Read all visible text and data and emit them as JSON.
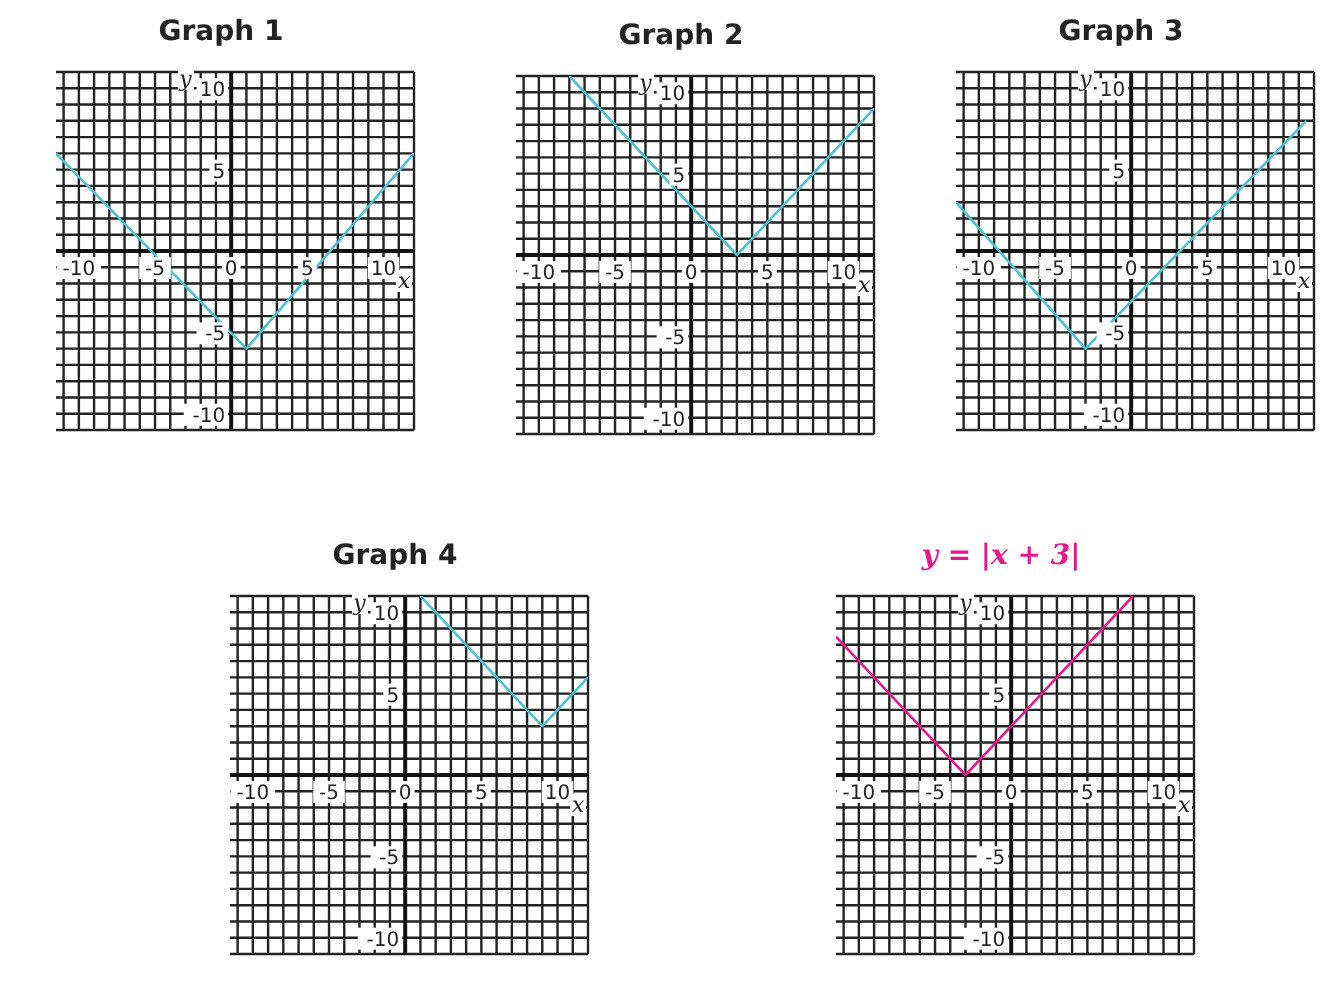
{
  "chart_data": [
    {
      "type": "line",
      "title": "Graph 1",
      "xlabel": "x",
      "ylabel": "y",
      "grid": true,
      "xlim": [
        -11.5,
        12
      ],
      "ylim": [
        -11,
        11
      ],
      "xticks": [
        {
          "value": -11,
          "label": null
        },
        -10,
        {
          "value": -9,
          "label": null
        },
        {
          "value": -8,
          "label": null
        },
        {
          "value": -7,
          "label": null
        },
        {
          "value": -6,
          "label": null
        },
        -5,
        {
          "value": -4,
          "label": null
        },
        {
          "value": -3,
          "label": null
        },
        {
          "value": -2,
          "label": null
        },
        {
          "value": -1,
          "label": null
        },
        0,
        {
          "value": 1,
          "label": null
        },
        {
          "value": 2,
          "label": null
        },
        {
          "value": 3,
          "label": null
        },
        {
          "value": 4,
          "label": null
        },
        5,
        {
          "value": 6,
          "label": null
        },
        {
          "value": 7,
          "label": null
        },
        {
          "value": 8,
          "label": null
        },
        {
          "value": 9,
          "label": null
        },
        10,
        {
          "value": 11,
          "label": null
        },
        {
          "value": 12,
          "label": null
        }
      ],
      "yticks": [
        {
          "value": -11,
          "label": null
        },
        -10,
        {
          "value": -9,
          "label": null
        },
        {
          "value": -8,
          "label": null
        },
        {
          "value": -7,
          "label": null
        },
        {
          "value": -6,
          "label": null
        },
        -5,
        {
          "value": -4,
          "label": null
        },
        {
          "value": -3,
          "label": null
        },
        {
          "value": -2,
          "label": null
        },
        {
          "value": -1,
          "label": null
        },
        {
          "value": 0,
          "label": null
        },
        {
          "value": 1,
          "label": null
        },
        {
          "value": 2,
          "label": null
        },
        {
          "value": 3,
          "label": null
        },
        {
          "value": 4,
          "label": null
        },
        5,
        {
          "value": 6,
          "label": null
        },
        {
          "value": 7,
          "label": null
        },
        {
          "value": 8,
          "label": null
        },
        {
          "value": 9,
          "label": null
        },
        10,
        {
          "value": 11,
          "label": null
        }
      ],
      "series": [
        {
          "color": "#4ec3cf",
          "x": [
            -11.5,
            1,
            12
          ],
          "values": [
            6,
            -6,
            6
          ]
        }
      ]
    },
    {
      "type": "line",
      "title": "Graph 2",
      "xlabel": "x",
      "ylabel": "y",
      "grid": true,
      "xlim": [
        -11.5,
        12
      ],
      "ylim": [
        -11,
        11
      ],
      "xticks": [
        {
          "value": -11,
          "label": null
        },
        -10,
        {
          "value": -9,
          "label": null
        },
        {
          "value": -8,
          "label": null
        },
        {
          "value": -7,
          "label": null
        },
        {
          "value": -6,
          "label": null
        },
        -5,
        {
          "value": -4,
          "label": null
        },
        {
          "value": -3,
          "label": null
        },
        {
          "value": -2,
          "label": null
        },
        {
          "value": -1,
          "label": null
        },
        0,
        {
          "value": 1,
          "label": null
        },
        {
          "value": 2,
          "label": null
        },
        {
          "value": 3,
          "label": null
        },
        {
          "value": 4,
          "label": null
        },
        5,
        {
          "value": 6,
          "label": null
        },
        {
          "value": 7,
          "label": null
        },
        {
          "value": 8,
          "label": null
        },
        {
          "value": 9,
          "label": null
        },
        10,
        {
          "value": 11,
          "label": null
        },
        {
          "value": 12,
          "label": null
        }
      ],
      "yticks": [
        {
          "value": -11,
          "label": null
        },
        -10,
        {
          "value": -9,
          "label": null
        },
        {
          "value": -8,
          "label": null
        },
        {
          "value": -7,
          "label": null
        },
        {
          "value": -6,
          "label": null
        },
        -5,
        {
          "value": -4,
          "label": null
        },
        {
          "value": -3,
          "label": null
        },
        {
          "value": -2,
          "label": null
        },
        {
          "value": -1,
          "label": null
        },
        {
          "value": 0,
          "label": null
        },
        {
          "value": 1,
          "label": null
        },
        {
          "value": 2,
          "label": null
        },
        {
          "value": 3,
          "label": null
        },
        {
          "value": 4,
          "label": null
        },
        5,
        {
          "value": 6,
          "label": null
        },
        {
          "value": 7,
          "label": null
        },
        {
          "value": 8,
          "label": null
        },
        {
          "value": 9,
          "label": null
        },
        10,
        {
          "value": 11,
          "label": null
        }
      ],
      "series": [
        {
          "color": "#4ec3cf",
          "x": [
            -8,
            3,
            12
          ],
          "values": [
            11,
            0,
            9
          ]
        }
      ]
    },
    {
      "type": "line",
      "title": "Graph 3",
      "xlabel": "x",
      "ylabel": "y",
      "grid": true,
      "xlim": [
        -11.5,
        12
      ],
      "ylim": [
        -11,
        11
      ],
      "xticks": [
        {
          "value": -11,
          "label": null
        },
        -10,
        {
          "value": -9,
          "label": null
        },
        {
          "value": -8,
          "label": null
        },
        {
          "value": -7,
          "label": null
        },
        {
          "value": -6,
          "label": null
        },
        -5,
        {
          "value": -4,
          "label": null
        },
        {
          "value": -3,
          "label": null
        },
        {
          "value": -2,
          "label": null
        },
        {
          "value": -1,
          "label": null
        },
        0,
        {
          "value": 1,
          "label": null
        },
        {
          "value": 2,
          "label": null
        },
        {
          "value": 3,
          "label": null
        },
        {
          "value": 4,
          "label": null
        },
        5,
        {
          "value": 6,
          "label": null
        },
        {
          "value": 7,
          "label": null
        },
        {
          "value": 8,
          "label": null
        },
        {
          "value": 9,
          "label": null
        },
        10,
        {
          "value": 11,
          "label": null
        },
        {
          "value": 12,
          "label": null
        }
      ],
      "yticks": [
        {
          "value": -11,
          "label": null
        },
        -10,
        {
          "value": -9,
          "label": null
        },
        {
          "value": -8,
          "label": null
        },
        {
          "value": -7,
          "label": null
        },
        {
          "value": -6,
          "label": null
        },
        -5,
        {
          "value": -4,
          "label": null
        },
        {
          "value": -3,
          "label": null
        },
        {
          "value": -2,
          "label": null
        },
        {
          "value": -1,
          "label": null
        },
        {
          "value": 0,
          "label": null
        },
        {
          "value": 1,
          "label": null
        },
        {
          "value": 2,
          "label": null
        },
        {
          "value": 3,
          "label": null
        },
        {
          "value": 4,
          "label": null
        },
        5,
        {
          "value": 6,
          "label": null
        },
        {
          "value": 7,
          "label": null
        },
        {
          "value": 8,
          "label": null
        },
        {
          "value": 9,
          "label": null
        },
        10,
        {
          "value": 11,
          "label": null
        }
      ],
      "series": [
        {
          "color": "#4ec3cf",
          "x": [
            -11.5,
            -3,
            11.5
          ],
          "values": [
            3,
            -6,
            8
          ]
        }
      ]
    },
    {
      "type": "line",
      "title": "Graph 4",
      "xlabel": "x",
      "ylabel": "y",
      "grid": true,
      "xlim": [
        -11.5,
        12
      ],
      "ylim": [
        -11,
        11
      ],
      "xticks": [
        {
          "value": -11,
          "label": null
        },
        -10,
        {
          "value": -9,
          "label": null
        },
        {
          "value": -8,
          "label": null
        },
        {
          "value": -7,
          "label": null
        },
        {
          "value": -6,
          "label": null
        },
        -5,
        {
          "value": -4,
          "label": null
        },
        {
          "value": -3,
          "label": null
        },
        {
          "value": -2,
          "label": null
        },
        {
          "value": -1,
          "label": null
        },
        0,
        {
          "value": 1,
          "label": null
        },
        {
          "value": 2,
          "label": null
        },
        {
          "value": 3,
          "label": null
        },
        {
          "value": 4,
          "label": null
        },
        5,
        {
          "value": 6,
          "label": null
        },
        {
          "value": 7,
          "label": null
        },
        {
          "value": 8,
          "label": null
        },
        {
          "value": 9,
          "label": null
        },
        10,
        {
          "value": 11,
          "label": null
        },
        {
          "value": 12,
          "label": null
        }
      ],
      "yticks": [
        {
          "value": -11,
          "label": null
        },
        -10,
        {
          "value": -9,
          "label": null
        },
        {
          "value": -8,
          "label": null
        },
        {
          "value": -7,
          "label": null
        },
        {
          "value": -6,
          "label": null
        },
        -5,
        {
          "value": -4,
          "label": null
        },
        {
          "value": -3,
          "label": null
        },
        {
          "value": -2,
          "label": null
        },
        {
          "value": -1,
          "label": null
        },
        {
          "value": 0,
          "label": null
        },
        {
          "value": 1,
          "label": null
        },
        {
          "value": 2,
          "label": null
        },
        {
          "value": 3,
          "label": null
        },
        {
          "value": 4,
          "label": null
        },
        5,
        {
          "value": 6,
          "label": null
        },
        {
          "value": 7,
          "label": null
        },
        {
          "value": 8,
          "label": null
        },
        {
          "value": 9,
          "label": null
        },
        10,
        {
          "value": 11,
          "label": null
        }
      ],
      "series": [
        {
          "color": "#4ec3cf",
          "x": [
            1,
            9,
            12
          ],
          "values": [
            11,
            3,
            6
          ]
        }
      ]
    },
    {
      "type": "line",
      "title": "y = |x + 3|",
      "xlabel": "x",
      "ylabel": "y",
      "grid": true,
      "xlim": [
        -11.5,
        12
      ],
      "ylim": [
        -11,
        11
      ],
      "xticks": [
        {
          "value": -11,
          "label": null
        },
        -10,
        {
          "value": -9,
          "label": null
        },
        {
          "value": -8,
          "label": null
        },
        {
          "value": -7,
          "label": null
        },
        {
          "value": -6,
          "label": null
        },
        -5,
        {
          "value": -4,
          "label": null
        },
        {
          "value": -3,
          "label": null
        },
        {
          "value": -2,
          "label": null
        },
        {
          "value": -1,
          "label": null
        },
        0,
        {
          "value": 1,
          "label": null
        },
        {
          "value": 2,
          "label": null
        },
        {
          "value": 3,
          "label": null
        },
        {
          "value": 4,
          "label": null
        },
        5,
        {
          "value": 6,
          "label": null
        },
        {
          "value": 7,
          "label": null
        },
        {
          "value": 8,
          "label": null
        },
        {
          "value": 9,
          "label": null
        },
        10,
        {
          "value": 11,
          "label": null
        },
        {
          "value": 12,
          "label": null
        }
      ],
      "yticks": [
        {
          "value": -11,
          "label": null
        },
        -10,
        {
          "value": -9,
          "label": null
        },
        {
          "value": -8,
          "label": null
        },
        {
          "value": -7,
          "label": null
        },
        {
          "value": -6,
          "label": null
        },
        -5,
        {
          "value": -4,
          "label": null
        },
        {
          "value": -3,
          "label": null
        },
        {
          "value": -2,
          "label": null
        },
        {
          "value": -1,
          "label": null
        },
        {
          "value": 0,
          "label": null
        },
        {
          "value": 1,
          "label": null
        },
        {
          "value": 2,
          "label": null
        },
        {
          "value": 3,
          "label": null
        },
        {
          "value": 4,
          "label": null
        },
        5,
        {
          "value": 6,
          "label": null
        },
        {
          "value": 7,
          "label": null
        },
        {
          "value": 8,
          "label": null
        },
        {
          "value": 9,
          "label": null
        },
        10,
        {
          "value": 11,
          "label": null
        }
      ],
      "series": [
        {
          "color": "#e5198c",
          "x": [
            -11.5,
            -3,
            8
          ],
          "values": [
            8.5,
            0,
            11
          ]
        }
      ]
    }
  ]
}
